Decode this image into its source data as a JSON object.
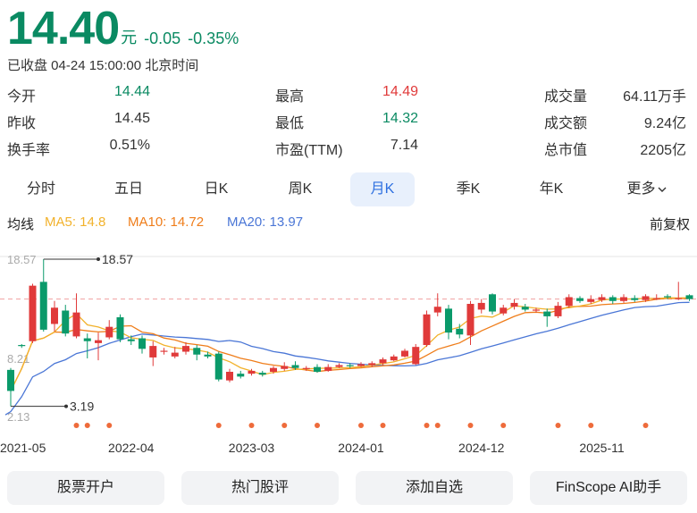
{
  "header": {
    "price": "14.40",
    "unit": "元",
    "change": "-0.05",
    "change_pct": "-0.35%",
    "status": "已收盘 04-24 15:00:00 北京时间"
  },
  "stats": {
    "open_label": "今开",
    "open_value": "14.44",
    "high_label": "最高",
    "high_value": "14.49",
    "volume_label": "成交量",
    "volume_value": "64.11万手",
    "prev_close_label": "昨收",
    "prev_close_value": "14.45",
    "low_label": "最低",
    "low_value": "14.32",
    "amount_label": "成交额",
    "amount_value": "9.24亿",
    "turnover_label": "换手率",
    "turnover_value": "0.51%",
    "pe_label": "市盈(TTM)",
    "pe_value": "7.14",
    "mktcap_label": "总市值",
    "mktcap_value": "2205亿"
  },
  "tabs": [
    {
      "label": "分时"
    },
    {
      "label": "五日"
    },
    {
      "label": "日K"
    },
    {
      "label": "周K"
    },
    {
      "label": "月K"
    },
    {
      "label": "季K"
    },
    {
      "label": "年K"
    },
    {
      "label": "更多"
    }
  ],
  "active_tab": "月K",
  "ma_row": {
    "label": "均线",
    "ma5": "MA5: 14.8",
    "ma10": "MA10: 14.72",
    "ma20": "MA20: 13.97",
    "adjust": "前复权"
  },
  "colors": {
    "up": "#e03a3a",
    "down": "#0a9a6a",
    "ma5": "#f2b22c",
    "ma10": "#ef7d1a",
    "ma20": "#4a76d6",
    "accent": "#2d6fe0",
    "dot": "#ee6b3b"
  },
  "chart_data": {
    "type": "candlestick",
    "y_axis_labels": [
      "18.57",
      "8.21",
      "2.13"
    ],
    "ylim": [
      2.13,
      18.57
    ],
    "max_marker": "18.57",
    "min_marker": "3.19",
    "reference_price": 14.4,
    "x_tick_labels": [
      "2021-05",
      "2022-04",
      "2023-03",
      "2024-01",
      "2024-12",
      "2025-11"
    ],
    "x_tick_index": [
      0,
      11,
      22,
      32,
      43,
      54
    ],
    "candles": [
      {
        "o": 7.0,
        "c": 4.8,
        "h": 7.2,
        "l": 3.19
      },
      {
        "o": 9.6,
        "c": 9.5,
        "h": 9.7,
        "l": 9.3
      },
      {
        "o": 10.0,
        "c": 15.8,
        "h": 16.0,
        "l": 9.8
      },
      {
        "o": 16.2,
        "c": 11.2,
        "h": 18.57,
        "l": 11.0
      },
      {
        "o": 11.8,
        "c": 13.5,
        "h": 14.2,
        "l": 11.0
      },
      {
        "o": 13.2,
        "c": 10.8,
        "h": 13.8,
        "l": 10.5
      },
      {
        "o": 10.5,
        "c": 13.0,
        "h": 15.0,
        "l": 10.3
      },
      {
        "o": 10.3,
        "c": 10.0,
        "h": 10.8,
        "l": 8.2
      },
      {
        "o": 9.8,
        "c": 10.1,
        "h": 10.9,
        "l": 8.0
      },
      {
        "o": 10.4,
        "c": 11.5,
        "h": 12.2,
        "l": 10.2
      },
      {
        "o": 12.5,
        "c": 10.2,
        "h": 12.8,
        "l": 9.9
      },
      {
        "o": 10.2,
        "c": 10.0,
        "h": 10.6,
        "l": 9.6
      },
      {
        "o": 10.3,
        "c": 9.2,
        "h": 10.6,
        "l": 8.7
      },
      {
        "o": 8.3,
        "c": 9.5,
        "h": 10.0,
        "l": 7.4
      },
      {
        "o": 9.0,
        "c": 9.0,
        "h": 9.3,
        "l": 8.6
      },
      {
        "o": 8.4,
        "c": 8.8,
        "h": 9.4,
        "l": 8.2
      },
      {
        "o": 8.9,
        "c": 9.5,
        "h": 9.9,
        "l": 8.6
      },
      {
        "o": 9.3,
        "c": 8.6,
        "h": 9.6,
        "l": 8.0
      },
      {
        "o": 8.6,
        "c": 8.4,
        "h": 8.9,
        "l": 8.2
      },
      {
        "o": 8.7,
        "c": 6.0,
        "h": 8.9,
        "l": 5.8
      },
      {
        "o": 5.9,
        "c": 6.8,
        "h": 7.1,
        "l": 5.7
      },
      {
        "o": 6.6,
        "c": 6.3,
        "h": 6.9,
        "l": 6.1
      },
      {
        "o": 6.6,
        "c": 6.9,
        "h": 7.1,
        "l": 6.4
      },
      {
        "o": 6.7,
        "c": 6.5,
        "h": 6.9,
        "l": 6.3
      },
      {
        "o": 6.8,
        "c": 7.2,
        "h": 7.4,
        "l": 6.6
      },
      {
        "o": 7.1,
        "c": 7.4,
        "h": 7.8,
        "l": 6.9
      },
      {
        "o": 7.5,
        "c": 7.2,
        "h": 7.9,
        "l": 7.0
      },
      {
        "o": 7.1,
        "c": 7.2,
        "h": 7.4,
        "l": 6.9
      },
      {
        "o": 7.3,
        "c": 6.8,
        "h": 7.6,
        "l": 6.7
      },
      {
        "o": 6.9,
        "c": 7.3,
        "h": 7.6,
        "l": 6.8
      },
      {
        "o": 7.3,
        "c": 7.5,
        "h": 7.7,
        "l": 7.2
      },
      {
        "o": 7.5,
        "c": 7.4,
        "h": 7.7,
        "l": 7.2
      },
      {
        "o": 7.4,
        "c": 7.6,
        "h": 7.8,
        "l": 7.3
      },
      {
        "o": 7.5,
        "c": 7.7,
        "h": 7.9,
        "l": 7.3
      },
      {
        "o": 7.7,
        "c": 8.1,
        "h": 8.3,
        "l": 7.5
      },
      {
        "o": 8.0,
        "c": 8.4,
        "h": 8.6,
        "l": 7.9
      },
      {
        "o": 8.4,
        "c": 9.0,
        "h": 9.2,
        "l": 8.3
      },
      {
        "o": 7.6,
        "c": 9.4,
        "h": 9.7,
        "l": 7.5
      },
      {
        "o": 9.6,
        "c": 12.8,
        "h": 13.2,
        "l": 9.4
      },
      {
        "o": 13.0,
        "c": 13.6,
        "h": 15.0,
        "l": 12.6
      },
      {
        "o": 13.4,
        "c": 10.9,
        "h": 13.8,
        "l": 10.2
      },
      {
        "o": 11.3,
        "c": 10.7,
        "h": 11.8,
        "l": 10.3
      },
      {
        "o": 10.6,
        "c": 13.9,
        "h": 14.2,
        "l": 9.6
      },
      {
        "o": 13.3,
        "c": 14.0,
        "h": 14.4,
        "l": 12.9
      },
      {
        "o": 14.9,
        "c": 13.1,
        "h": 15.0,
        "l": 12.8
      },
      {
        "o": 12.9,
        "c": 13.5,
        "h": 13.8,
        "l": 12.7
      },
      {
        "o": 13.6,
        "c": 14.0,
        "h": 14.4,
        "l": 13.3
      },
      {
        "o": 13.6,
        "c": 13.3,
        "h": 13.9,
        "l": 13.1
      },
      {
        "o": 13.2,
        "c": 13.3,
        "h": 13.5,
        "l": 13.0
      },
      {
        "o": 13.1,
        "c": 12.6,
        "h": 13.4,
        "l": 11.5
      },
      {
        "o": 12.6,
        "c": 13.7,
        "h": 14.1,
        "l": 12.4
      },
      {
        "o": 13.7,
        "c": 14.6,
        "h": 14.9,
        "l": 13.5
      },
      {
        "o": 14.5,
        "c": 14.2,
        "h": 14.7,
        "l": 14.0
      },
      {
        "o": 14.1,
        "c": 14.4,
        "h": 14.8,
        "l": 13.9
      },
      {
        "o": 14.3,
        "c": 14.6,
        "h": 14.9,
        "l": 14.1
      },
      {
        "o": 14.6,
        "c": 14.2,
        "h": 14.8,
        "l": 13.9
      },
      {
        "o": 14.2,
        "c": 14.6,
        "h": 14.9,
        "l": 14.0
      },
      {
        "o": 14.5,
        "c": 14.3,
        "h": 14.8,
        "l": 14.1
      },
      {
        "o": 14.3,
        "c": 14.7,
        "h": 14.9,
        "l": 14.1
      },
      {
        "o": 14.5,
        "c": 14.5,
        "h": 14.9,
        "l": 14.3
      },
      {
        "o": 14.7,
        "c": 14.6,
        "h": 14.9,
        "l": 14.4
      },
      {
        "o": 14.4,
        "c": 14.5,
        "h": 16.2,
        "l": 14.3
      },
      {
        "o": 14.8,
        "c": 14.4,
        "h": 14.9,
        "l": 14.2
      }
    ],
    "dot_indices": [
      6,
      7,
      9,
      19,
      22,
      25,
      28,
      32,
      34,
      38,
      39,
      42,
      45,
      50,
      53,
      58
    ]
  },
  "buttons": [
    {
      "label": "股票开户"
    },
    {
      "label": "热门股评"
    },
    {
      "label": "添加自选"
    },
    {
      "label": "FinScope AI助手"
    }
  ]
}
